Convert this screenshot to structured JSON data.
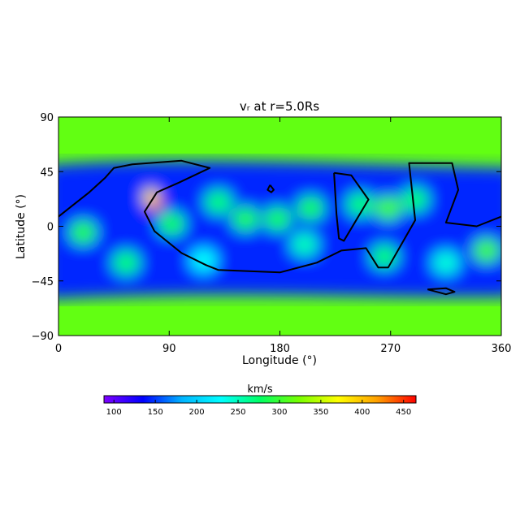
{
  "chart_data": {
    "type": "heatmap",
    "title": "vᵣ at r=5.0Rs",
    "xlabel": "Longitude (°)",
    "ylabel": "Latitude (°)",
    "xlim": [
      0,
      360
    ],
    "ylim": [
      -90,
      90
    ],
    "x_ticks": [
      "0",
      "90",
      "180",
      "270",
      "360"
    ],
    "y_ticks": [
      "90",
      "45",
      "0",
      "−45",
      "−90"
    ],
    "colorbar": {
      "label": "km/s",
      "range": [
        88,
        465
      ],
      "ticks": [
        "100",
        "150",
        "200",
        "250",
        "300",
        "350",
        "400",
        "450"
      ],
      "colors": [
        "#7f00ff",
        "#0000ff",
        "#00b4ff",
        "#00ffff",
        "#00ff64",
        "#78ff00",
        "#ffff00",
        "#ffa000",
        "#ff0000"
      ]
    },
    "background_value": 315,
    "streamer_band_value": 145,
    "features": [
      {
        "lon": 78,
        "lat": 20,
        "value": 460
      },
      {
        "lon": 75,
        "lat": 24,
        "value": 380
      },
      {
        "lon": 92,
        "lat": 2,
        "value": 280
      },
      {
        "lon": 130,
        "lat": 20,
        "value": 270
      },
      {
        "lon": 152,
        "lat": 6,
        "value": 285
      },
      {
        "lon": 178,
        "lat": 6,
        "value": 280
      },
      {
        "lon": 205,
        "lat": 15,
        "value": 280
      },
      {
        "lon": 245,
        "lat": 18,
        "value": 270
      },
      {
        "lon": 268,
        "lat": 15,
        "value": 300
      },
      {
        "lon": 290,
        "lat": 22,
        "value": 270
      },
      {
        "lon": 348,
        "lat": -20,
        "value": 300
      },
      {
        "lon": 20,
        "lat": -5,
        "value": 290
      },
      {
        "lon": 55,
        "lat": -30,
        "value": 270
      },
      {
        "lon": 118,
        "lat": -28,
        "value": 230
      },
      {
        "lon": 265,
        "lat": -25,
        "value": 270
      },
      {
        "lon": 315,
        "lat": -30,
        "value": 240
      },
      {
        "lon": 200,
        "lat": -15,
        "value": 250
      }
    ],
    "contours": [
      {
        "name": "",
        "points": [
          [
            0,
            8
          ],
          [
            10,
            16
          ],
          [
            25,
            28
          ],
          [
            38,
            40
          ],
          [
            45,
            48
          ],
          [
            60,
            51
          ],
          [
            100,
            54
          ],
          [
            123,
            48
          ],
          [
            98,
            36
          ],
          [
            80,
            28
          ],
          [
            70,
            12
          ],
          [
            78,
            -4
          ],
          [
            100,
            -22
          ],
          [
            120,
            -32
          ],
          [
            130,
            -36
          ],
          [
            180,
            -38
          ],
          [
            210,
            -30
          ],
          [
            230,
            -20
          ],
          [
            250,
            -18
          ],
          [
            260,
            -34
          ],
          [
            268,
            -34
          ],
          [
            290,
            5
          ],
          [
            285,
            52
          ],
          [
            320,
            52
          ],
          [
            325,
            30
          ],
          [
            315,
            3
          ],
          [
            340,
            0
          ],
          [
            360,
            8
          ]
        ]
      },
      {
        "name": "",
        "points": [
          [
            224,
            44
          ],
          [
            238,
            42
          ],
          [
            252,
            22
          ],
          [
            232,
            -12
          ],
          [
            228,
            -10
          ],
          [
            226,
            10
          ],
          [
            224,
            44
          ]
        ]
      },
      {
        "name": "",
        "points": [
          [
            172,
            34
          ],
          [
            175,
            30
          ],
          [
            173,
            28
          ],
          [
            170,
            30
          ],
          [
            172,
            34
          ]
        ]
      },
      {
        "name": "",
        "points": [
          [
            300,
            -52
          ],
          [
            315,
            -56
          ],
          [
            322,
            -54
          ],
          [
            315,
            -51
          ],
          [
            300,
            -52
          ]
        ]
      }
    ]
  }
}
